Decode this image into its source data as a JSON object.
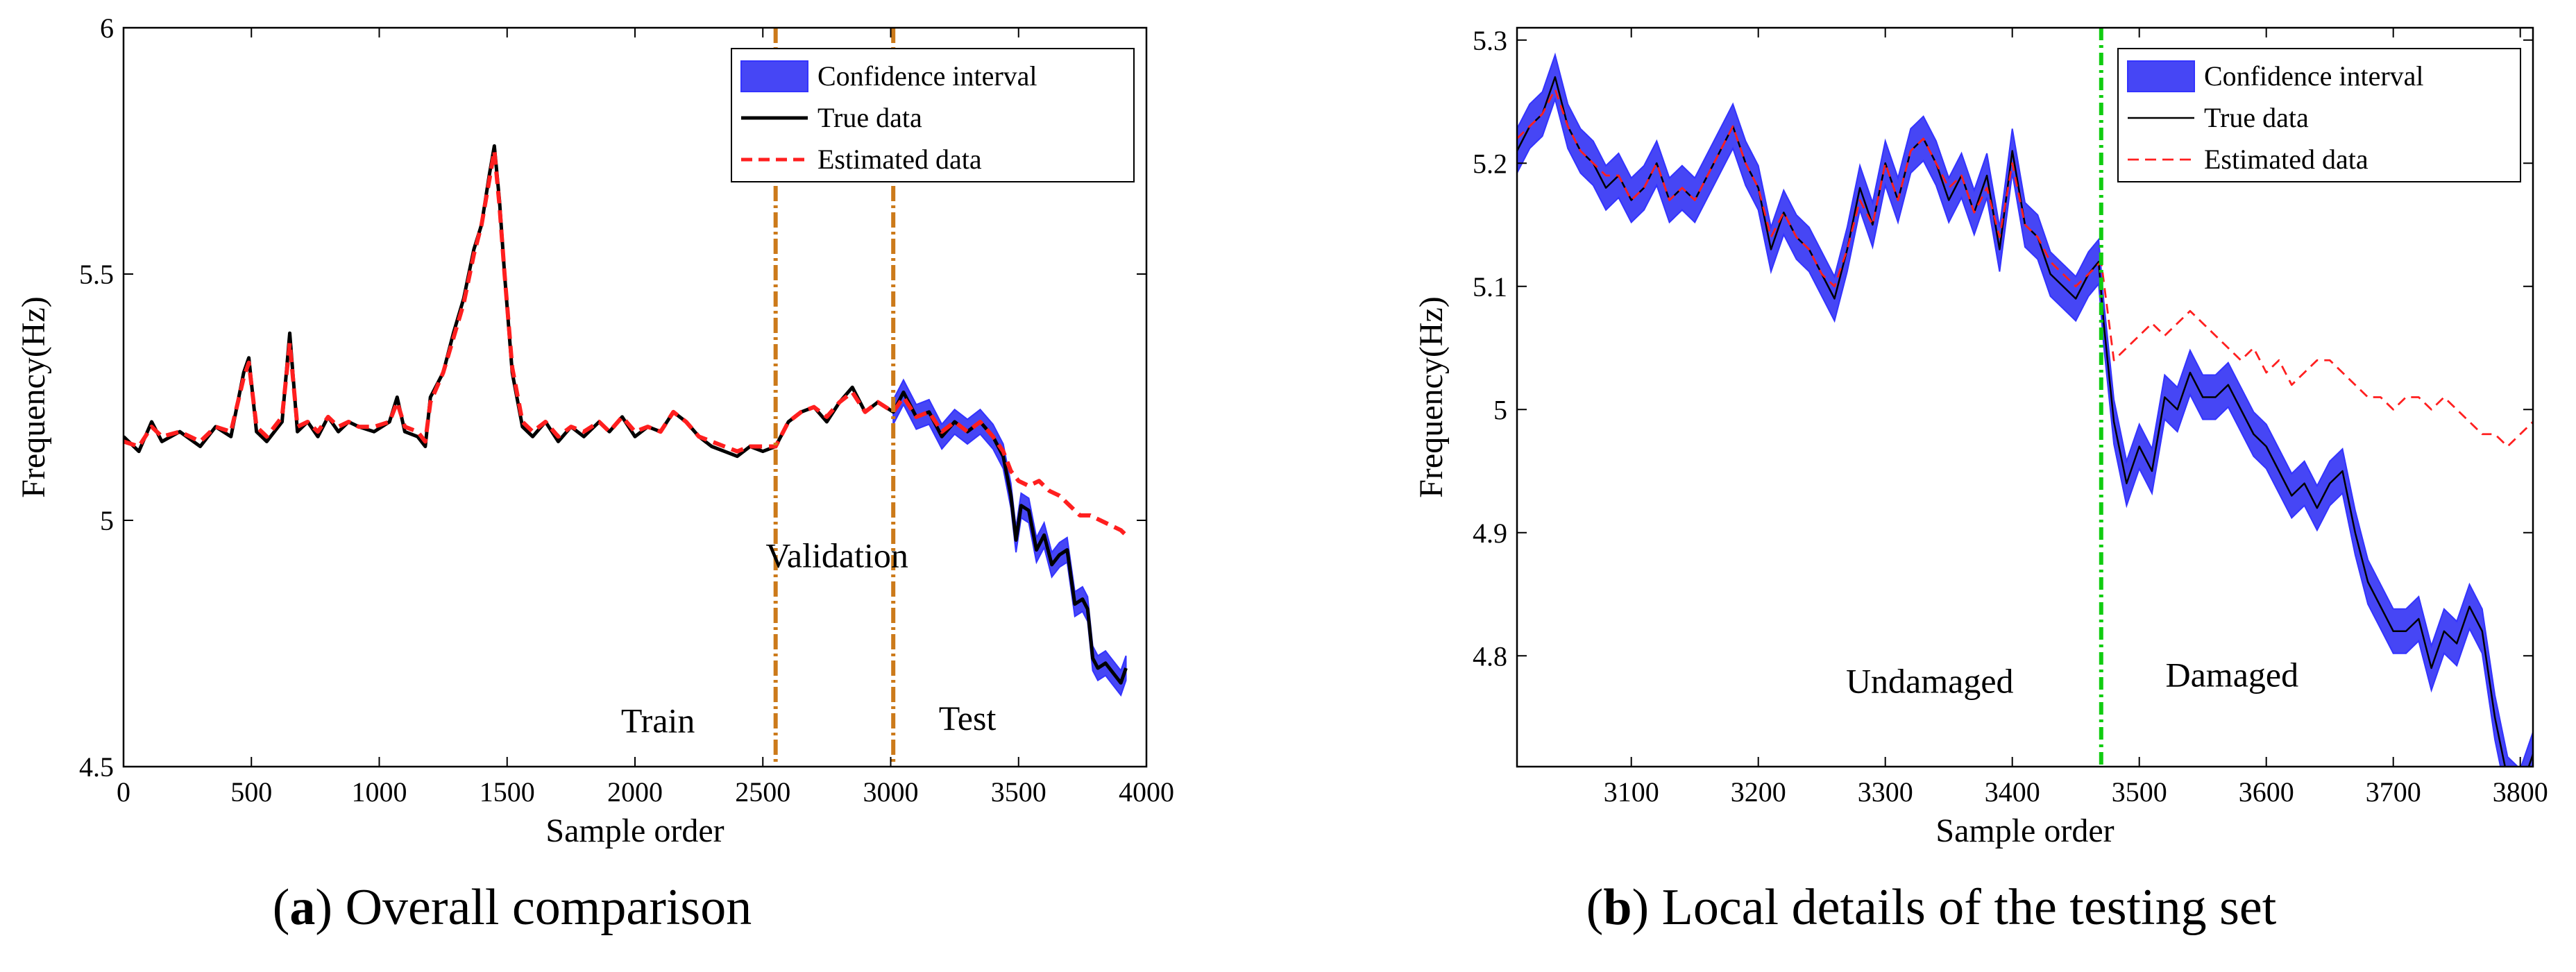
{
  "colors": {
    "band": "#3333ff",
    "band_fill": "#4646f5",
    "true": "#000000",
    "estimated": "#ff1f1f",
    "split_line": "#cc7a1a",
    "damage_line": "#11cc11"
  },
  "chart_data": [
    {
      "type": "line",
      "caption_letter": "a",
      "caption_text": "Overall comparison",
      "xlabel": "Sample order",
      "ylabel": "Frequency(Hz)",
      "xlim": [
        0,
        4000
      ],
      "ylim": [
        4.5,
        6
      ],
      "xticks": [
        0,
        500,
        1000,
        1500,
        2000,
        2500,
        3000,
        3500,
        4000
      ],
      "yticks": [
        4.5,
        5,
        5.5,
        6
      ],
      "ytick_labels": [
        "4.5",
        "5",
        "5.5",
        "6"
      ],
      "grid": false,
      "legend_position": "top-right",
      "legend": [
        "Confidence interval",
        "True data",
        "Estimated data"
      ],
      "vlines": [
        2550,
        3010
      ],
      "annotations": [
        {
          "text": "Validation",
          "x": 2790,
          "y": 4.905
        },
        {
          "text": "Train",
          "x": 2090,
          "y": 4.57
        },
        {
          "text": "Test",
          "x": 3300,
          "y": 4.575
        }
      ],
      "series": [
        {
          "role": "true",
          "x": [
            0,
            60,
            110,
            150,
            220,
            300,
            360,
            420,
            470,
            490,
            520,
            560,
            620,
            650,
            680,
            720,
            760,
            800,
            840,
            880,
            920,
            980,
            1040,
            1070,
            1100,
            1150,
            1180,
            1200,
            1250,
            1290,
            1330,
            1370,
            1400,
            1430,
            1450,
            1470,
            1490,
            1520,
            1560,
            1600,
            1650,
            1700,
            1750,
            1800,
            1860,
            1900,
            1950,
            2000,
            2050,
            2100,
            2150,
            2200,
            2250,
            2300,
            2350,
            2400,
            2450,
            2500,
            2550,
            2600,
            2650,
            2700,
            2750,
            2800,
            2850,
            2900,
            2950,
            3010,
            3050,
            3100,
            3150,
            3200,
            3250,
            3300,
            3350,
            3400,
            3440,
            3470,
            3490,
            3510,
            3540,
            3570,
            3600,
            3630,
            3660,
            3690,
            3720,
            3750,
            3770,
            3790,
            3810,
            3840,
            3870,
            3900,
            3920
          ],
          "y": [
            5.17,
            5.14,
            5.2,
            5.16,
            5.18,
            5.15,
            5.19,
            5.17,
            5.3,
            5.33,
            5.18,
            5.16,
            5.2,
            5.38,
            5.18,
            5.2,
            5.17,
            5.21,
            5.18,
            5.2,
            5.19,
            5.18,
            5.2,
            5.25,
            5.18,
            5.17,
            5.15,
            5.25,
            5.3,
            5.38,
            5.45,
            5.55,
            5.6,
            5.7,
            5.76,
            5.65,
            5.5,
            5.3,
            5.19,
            5.17,
            5.2,
            5.16,
            5.19,
            5.17,
            5.2,
            5.18,
            5.21,
            5.17,
            5.19,
            5.18,
            5.22,
            5.2,
            5.17,
            5.15,
            5.14,
            5.13,
            5.15,
            5.14,
            5.15,
            5.2,
            5.22,
            5.23,
            5.2,
            5.24,
            5.27,
            5.22,
            5.24,
            5.22,
            5.26,
            5.21,
            5.22,
            5.17,
            5.2,
            5.18,
            5.2,
            5.17,
            5.13,
            5.05,
            4.96,
            5.03,
            5.02,
            4.94,
            4.97,
            4.91,
            4.93,
            4.94,
            4.83,
            4.84,
            4.82,
            4.72,
            4.7,
            4.71,
            4.69,
            4.67,
            4.7
          ]
        },
        {
          "role": "estimated",
          "x": [
            0,
            60,
            110,
            150,
            220,
            300,
            360,
            420,
            470,
            490,
            520,
            560,
            620,
            650,
            680,
            720,
            760,
            800,
            840,
            880,
            920,
            980,
            1040,
            1070,
            1100,
            1150,
            1180,
            1200,
            1250,
            1290,
            1330,
            1370,
            1400,
            1430,
            1450,
            1470,
            1490,
            1520,
            1560,
            1600,
            1650,
            1700,
            1750,
            1800,
            1860,
            1900,
            1950,
            2000,
            2050,
            2100,
            2150,
            2200,
            2250,
            2300,
            2350,
            2400,
            2450,
            2500,
            2550,
            2600,
            2650,
            2700,
            2750,
            2800,
            2850,
            2900,
            2950,
            3010,
            3050,
            3100,
            3150,
            3200,
            3250,
            3300,
            3350,
            3400,
            3440,
            3470,
            3500,
            3540,
            3580,
            3620,
            3660,
            3700,
            3740,
            3780,
            3820,
            3860,
            3900,
            3920
          ],
          "y": [
            5.16,
            5.15,
            5.19,
            5.17,
            5.18,
            5.16,
            5.19,
            5.18,
            5.29,
            5.32,
            5.19,
            5.17,
            5.21,
            5.36,
            5.19,
            5.2,
            5.18,
            5.21,
            5.19,
            5.2,
            5.19,
            5.19,
            5.2,
            5.24,
            5.19,
            5.18,
            5.16,
            5.24,
            5.3,
            5.37,
            5.44,
            5.54,
            5.6,
            5.69,
            5.75,
            5.64,
            5.5,
            5.31,
            5.2,
            5.18,
            5.2,
            5.17,
            5.19,
            5.18,
            5.2,
            5.18,
            5.21,
            5.18,
            5.19,
            5.18,
            5.22,
            5.2,
            5.17,
            5.16,
            5.15,
            5.14,
            5.15,
            5.15,
            5.15,
            5.2,
            5.22,
            5.23,
            5.21,
            5.24,
            5.26,
            5.22,
            5.24,
            5.22,
            5.25,
            5.21,
            5.22,
            5.18,
            5.2,
            5.18,
            5.2,
            5.17,
            5.14,
            5.1,
            5.08,
            5.07,
            5.08,
            5.06,
            5.05,
            5.03,
            5.01,
            5.01,
            5.0,
            4.99,
            4.98,
            4.97
          ]
        }
      ]
    },
    {
      "type": "line",
      "caption_letter": "b",
      "caption_text": "Local details of the testing set",
      "xlabel": "Sample order",
      "ylabel": "Frequency(Hz)",
      "xlim": [
        3010,
        3810
      ],
      "ylim": [
        4.71,
        5.31
      ],
      "xticks": [
        3100,
        3200,
        3300,
        3400,
        3500,
        3600,
        3700,
        3800
      ],
      "yticks": [
        4.8,
        4.9,
        5,
        5.1,
        5.2,
        5.3
      ],
      "ytick_labels": [
        "4.8",
        "4.9",
        "5",
        "5.1",
        "5.2",
        "5.3"
      ],
      "grid": false,
      "legend_position": "top-right",
      "legend": [
        "Confidence interval",
        "True data",
        "Estimated data"
      ],
      "vlines": [
        3470
      ],
      "annotations": [
        {
          "text": "Undamaged",
          "x": 3335,
          "y": 4.77
        },
        {
          "text": "Damaged",
          "x": 3573,
          "y": 4.775
        }
      ],
      "band_halfwidth": 0.018,
      "series": [
        {
          "role": "true",
          "x": [
            3010,
            3020,
            3030,
            3040,
            3050,
            3060,
            3070,
            3080,
            3090,
            3100,
            3110,
            3120,
            3130,
            3140,
            3150,
            3160,
            3170,
            3180,
            3190,
            3200,
            3210,
            3220,
            3230,
            3240,
            3250,
            3260,
            3270,
            3280,
            3290,
            3300,
            3310,
            3320,
            3330,
            3340,
            3350,
            3360,
            3370,
            3380,
            3390,
            3400,
            3410,
            3420,
            3430,
            3440,
            3450,
            3460,
            3468,
            3472,
            3480,
            3490,
            3500,
            3510,
            3520,
            3530,
            3540,
            3550,
            3560,
            3570,
            3580,
            3590,
            3600,
            3610,
            3620,
            3630,
            3640,
            3650,
            3660,
            3670,
            3680,
            3690,
            3700,
            3710,
            3720,
            3730,
            3740,
            3750,
            3760,
            3770,
            3780,
            3790,
            3800,
            3810
          ],
          "y": [
            5.21,
            5.23,
            5.24,
            5.27,
            5.23,
            5.21,
            5.2,
            5.18,
            5.19,
            5.17,
            5.18,
            5.2,
            5.17,
            5.18,
            5.17,
            5.19,
            5.21,
            5.23,
            5.2,
            5.18,
            5.13,
            5.16,
            5.14,
            5.13,
            5.11,
            5.09,
            5.13,
            5.18,
            5.15,
            5.2,
            5.17,
            5.21,
            5.22,
            5.2,
            5.17,
            5.19,
            5.16,
            5.19,
            5.13,
            5.21,
            5.15,
            5.14,
            5.11,
            5.1,
            5.09,
            5.11,
            5.12,
            5.07,
            4.99,
            4.94,
            4.97,
            4.95,
            5.01,
            5.0,
            5.03,
            5.01,
            5.01,
            5.02,
            5.0,
            4.98,
            4.97,
            4.95,
            4.93,
            4.94,
            4.92,
            4.94,
            4.95,
            4.9,
            4.86,
            4.84,
            4.82,
            4.82,
            4.83,
            4.79,
            4.82,
            4.81,
            4.84,
            4.82,
            4.75,
            4.7,
            4.69,
            4.72
          ]
        },
        {
          "role": "estimated",
          "x": [
            3010,
            3020,
            3030,
            3040,
            3050,
            3060,
            3070,
            3080,
            3090,
            3100,
            3110,
            3120,
            3130,
            3140,
            3150,
            3160,
            3170,
            3180,
            3190,
            3200,
            3210,
            3220,
            3230,
            3240,
            3250,
            3260,
            3270,
            3280,
            3290,
            3300,
            3310,
            3320,
            3330,
            3340,
            3350,
            3360,
            3370,
            3380,
            3390,
            3400,
            3410,
            3420,
            3430,
            3440,
            3450,
            3460,
            3470,
            3480,
            3490,
            3500,
            3510,
            3520,
            3530,
            3540,
            3550,
            3560,
            3570,
            3580,
            3590,
            3600,
            3610,
            3620,
            3630,
            3640,
            3650,
            3660,
            3670,
            3680,
            3690,
            3700,
            3710,
            3720,
            3730,
            3740,
            3750,
            3760,
            3770,
            3780,
            3790,
            3800,
            3810
          ],
          "y": [
            5.22,
            5.23,
            5.24,
            5.26,
            5.23,
            5.21,
            5.2,
            5.19,
            5.19,
            5.17,
            5.18,
            5.2,
            5.17,
            5.18,
            5.17,
            5.19,
            5.21,
            5.23,
            5.2,
            5.18,
            5.14,
            5.16,
            5.14,
            5.13,
            5.11,
            5.1,
            5.13,
            5.17,
            5.15,
            5.2,
            5.17,
            5.21,
            5.22,
            5.2,
            5.18,
            5.19,
            5.16,
            5.18,
            5.14,
            5.2,
            5.15,
            5.14,
            5.12,
            5.11,
            5.1,
            5.11,
            5.12,
            5.04,
            5.05,
            5.06,
            5.07,
            5.06,
            5.07,
            5.08,
            5.07,
            5.06,
            5.05,
            5.04,
            5.05,
            5.03,
            5.04,
            5.02,
            5.03,
            5.04,
            5.04,
            5.03,
            5.02,
            5.01,
            5.01,
            5.0,
            5.01,
            5.01,
            5.0,
            5.01,
            5.0,
            4.99,
            4.98,
            4.98,
            4.97,
            4.98,
            4.99
          ]
        }
      ]
    }
  ]
}
